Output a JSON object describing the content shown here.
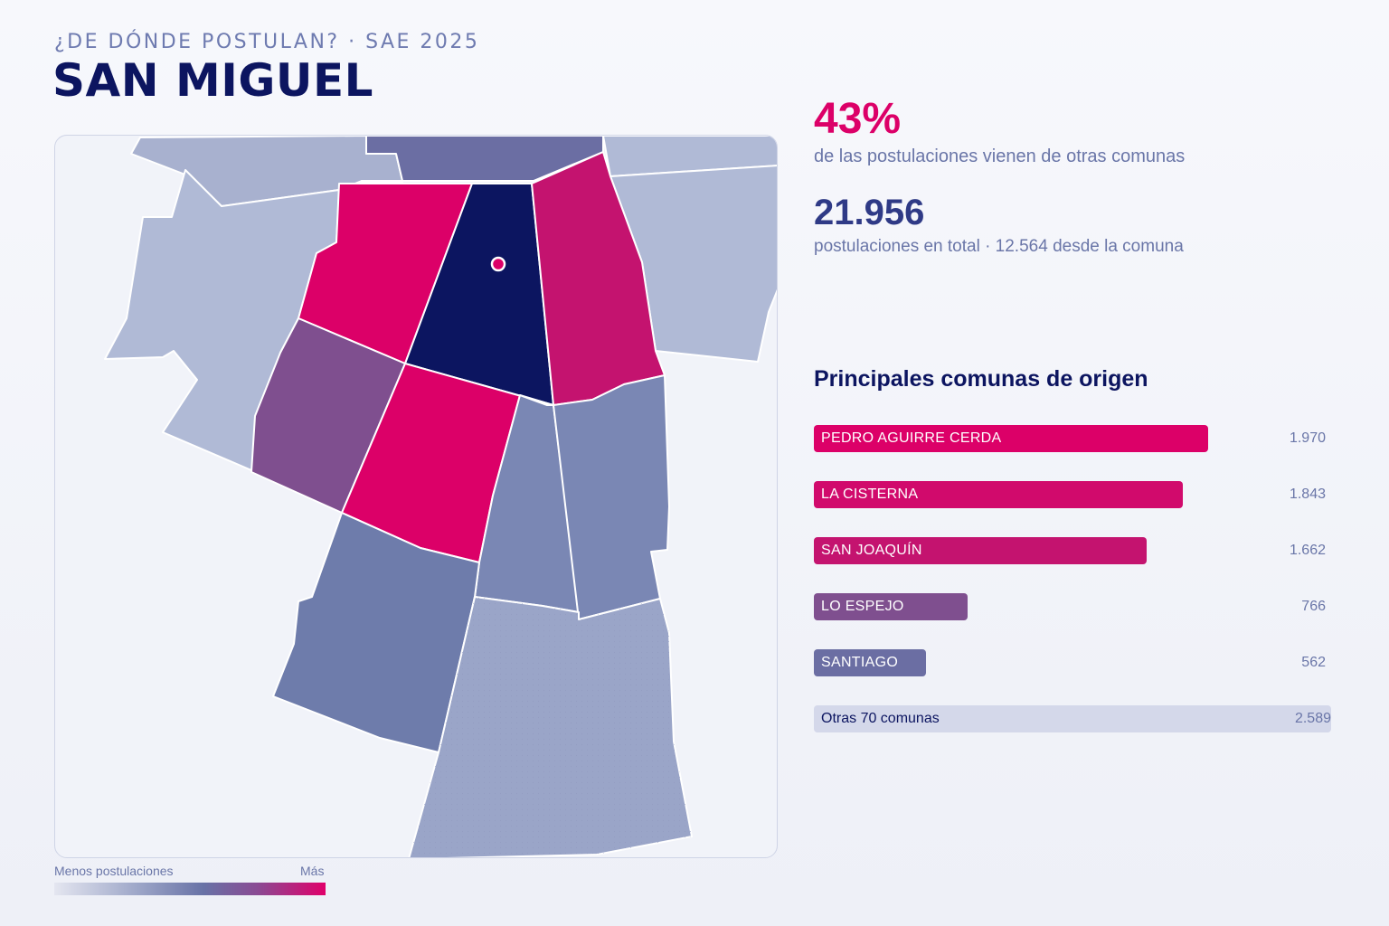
{
  "header": {
    "subtitle": "¿DE DÓNDE POSTULAN? · SAE 2025",
    "title": "SAN MIGUEL"
  },
  "kpis": {
    "share_value": "43%",
    "share_text": "de las postulaciones vienen de otras comunas",
    "total_value": "21.956",
    "total_text": "postulaciones en total · 12.564 desde la comuna"
  },
  "ranking": {
    "title": "Principales comunas de origen",
    "items": [
      {
        "name": "PEDRO AGUIRRE CERDA",
        "value": 1970,
        "value_label": "1.970",
        "color": "#dc0068"
      },
      {
        "name": "LA CISTERNA",
        "value": 1843,
        "value_label": "1.843",
        "color": "#d10a6c"
      },
      {
        "name": "SAN JOAQUÍN",
        "value": 1662,
        "value_label": "1.662",
        "color": "#c4136f"
      },
      {
        "name": "LO ESPEJO",
        "value": 766,
        "value_label": "766",
        "color": "#7f4f8f"
      },
      {
        "name": "SANTIAGO",
        "value": 562,
        "value_label": "562",
        "color": "#6b6ea3"
      }
    ],
    "other_label": "Otras 70 comunas",
    "other_value_label": "2.589"
  },
  "legend": {
    "less": "Menos postulaciones",
    "more": "Más"
  },
  "colors": {
    "selected": "#0c1560",
    "max": "#dc0068",
    "high": "#c4136f",
    "mid": "#7f4f8f",
    "mid_low": "#6e7cab",
    "low": "#9aa5c8",
    "lowest": "#b0bad6"
  }
}
